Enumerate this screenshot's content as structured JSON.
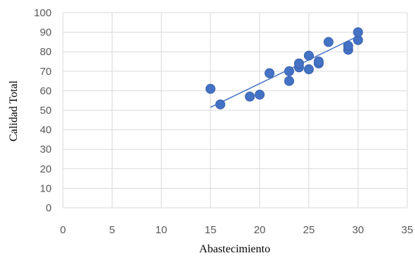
{
  "chart_data": {
    "type": "scatter",
    "xlabel": "Abastecimiento",
    "ylabel": "Calidad Total",
    "xlim": [
      0,
      35
    ],
    "ylim": [
      0,
      100
    ],
    "x_ticks": [
      0,
      5,
      10,
      15,
      20,
      25,
      30,
      35
    ],
    "y_ticks": [
      0,
      10,
      20,
      30,
      40,
      50,
      60,
      70,
      80,
      90,
      100
    ],
    "grid": true,
    "legend": "none",
    "points": [
      {
        "x": 15,
        "y": 61
      },
      {
        "x": 16,
        "y": 53
      },
      {
        "x": 19,
        "y": 57
      },
      {
        "x": 20,
        "y": 58
      },
      {
        "x": 21,
        "y": 69
      },
      {
        "x": 23,
        "y": 65
      },
      {
        "x": 23,
        "y": 70
      },
      {
        "x": 24,
        "y": 72
      },
      {
        "x": 24,
        "y": 74
      },
      {
        "x": 25,
        "y": 71
      },
      {
        "x": 25,
        "y": 78
      },
      {
        "x": 26,
        "y": 74
      },
      {
        "x": 26,
        "y": 75
      },
      {
        "x": 27,
        "y": 85
      },
      {
        "x": 29,
        "y": 81
      },
      {
        "x": 29,
        "y": 83
      },
      {
        "x": 30,
        "y": 86
      },
      {
        "x": 30,
        "y": 90
      }
    ],
    "trendline": {
      "x": [
        15,
        30
      ],
      "y": [
        51.5,
        88
      ]
    },
    "colors": {
      "marker": "#4472C4",
      "marker_edge": "#3A62AD",
      "trendline": "#4472C4",
      "grid": "#D9D9D9"
    }
  }
}
